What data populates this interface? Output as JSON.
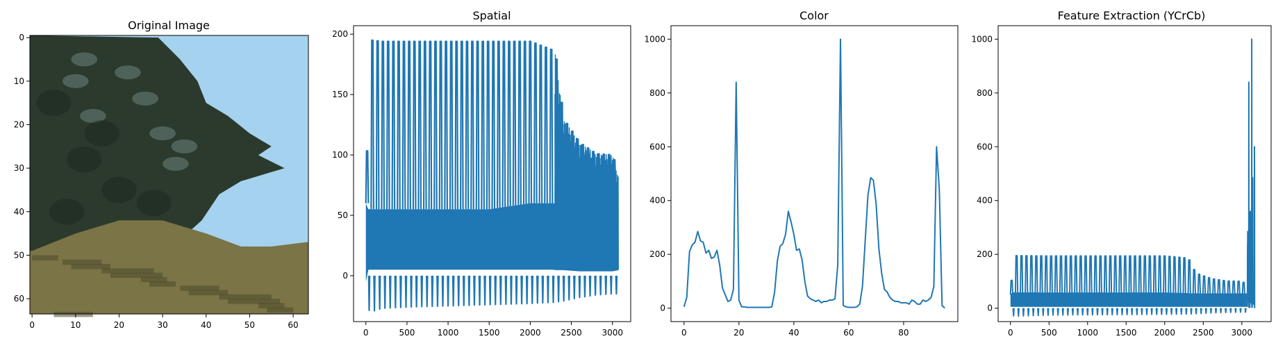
{
  "chart_data": [
    {
      "type": "image",
      "title": "Original Image",
      "xlim": [
        -0.5,
        63.5
      ],
      "ylim": [
        63.5,
        -0.5
      ],
      "xticks": [
        0,
        10,
        20,
        30,
        40,
        50,
        60
      ],
      "yticks": [
        0,
        10,
        20,
        30,
        40,
        50,
        60
      ],
      "scene": {
        "sky_color": "#a5d2ee",
        "tree_color": "#2b3a2c",
        "tree_highlight_color": "#7c9592",
        "grass_color": "#7a7446",
        "grass_dark_color": "#4c4a2b",
        "tree_edge_rows": [
          [
            0,
            29
          ],
          [
            5,
            34
          ],
          [
            10,
            38
          ],
          [
            15,
            40
          ],
          [
            18,
            45
          ],
          [
            22,
            50
          ],
          [
            25,
            55
          ],
          [
            27,
            52
          ],
          [
            30,
            58
          ],
          [
            33,
            48
          ],
          [
            36,
            43
          ],
          [
            39,
            41
          ],
          [
            42,
            39
          ]
        ],
        "grass_top_rows": [
          [
            0,
            49
          ],
          [
            10,
            45
          ],
          [
            20,
            42
          ],
          [
            30,
            42
          ],
          [
            40,
            45
          ],
          [
            48,
            48
          ],
          [
            55,
            48
          ],
          [
            63,
            47
          ]
        ]
      }
    },
    {
      "type": "line",
      "title": "Spatial",
      "xlim": [
        -150,
        3222
      ],
      "ylim": [
        -38,
        207
      ],
      "xticks": [
        0,
        500,
        1000,
        1500,
        2000,
        2500,
        3000
      ],
      "yticks": [
        0,
        50,
        100,
        150,
        200
      ],
      "series": [
        {
          "name": "",
          "color": "#1f77b4",
          "n_points": 3072,
          "envelope_x": [
            0,
            30,
            60,
            200,
            500,
            1000,
            1500,
            2000,
            2300,
            2400,
            2600,
            2800,
            3000,
            3071
          ],
          "envelope_top": [
            70,
            195,
            195,
            194,
            194,
            194,
            194,
            194,
            186,
            130,
            110,
            101,
            100,
            82
          ],
          "envelope_bottom": [
            -5,
            -28,
            -30,
            -27,
            -26,
            -25,
            -24,
            -23,
            -22,
            -21,
            -18,
            -16,
            -15,
            -15
          ],
          "band_low": [
            -5,
            5,
            5,
            5,
            5,
            5,
            5,
            5,
            5,
            5,
            4,
            4,
            4,
            5
          ],
          "band_high": [
            60,
            55,
            55,
            55,
            55,
            55,
            55,
            60,
            60,
            70,
            72,
            70,
            68,
            65
          ],
          "spike_period": 64
        }
      ]
    },
    {
      "type": "line",
      "title": "Color",
      "xlim": [
        -4.75,
        99.75
      ],
      "ylim": [
        -50,
        1050
      ],
      "xticks": [
        0,
        20,
        40,
        60,
        80
      ],
      "yticks": [
        0,
        200,
        400,
        600,
        800,
        1000
      ],
      "series": [
        {
          "name": "",
          "color": "#1f77b4",
          "x": [
            0,
            1,
            2,
            3,
            4,
            5,
            6,
            7,
            8,
            9,
            10,
            11,
            12,
            13,
            14,
            15,
            16,
            17,
            18,
            19,
            20,
            21,
            22,
            23,
            24,
            25,
            26,
            27,
            28,
            29,
            30,
            31,
            32,
            33,
            34,
            35,
            36,
            37,
            38,
            39,
            40,
            41,
            42,
            43,
            44,
            45,
            46,
            47,
            48,
            49,
            50,
            51,
            52,
            53,
            54,
            55,
            56,
            57,
            58,
            59,
            60,
            61,
            62,
            63,
            64,
            65,
            66,
            67,
            68,
            69,
            70,
            71,
            72,
            73,
            74,
            75,
            76,
            77,
            78,
            79,
            80,
            81,
            82,
            83,
            84,
            85,
            86,
            87,
            88,
            89,
            90,
            91,
            92,
            93,
            94,
            95
          ],
          "y": [
            5,
            40,
            210,
            235,
            245,
            285,
            250,
            245,
            205,
            215,
            185,
            190,
            215,
            160,
            75,
            50,
            25,
            30,
            70,
            840,
            30,
            5,
            5,
            3,
            3,
            3,
            3,
            3,
            3,
            3,
            3,
            3,
            5,
            60,
            175,
            230,
            240,
            275,
            360,
            320,
            275,
            215,
            220,
            180,
            100,
            45,
            35,
            30,
            25,
            30,
            20,
            25,
            25,
            30,
            30,
            35,
            160,
            1000,
            10,
            5,
            3,
            3,
            3,
            5,
            15,
            80,
            250,
            420,
            485,
            475,
            385,
            220,
            130,
            70,
            60,
            40,
            30,
            25,
            25,
            20,
            20,
            20,
            15,
            30,
            25,
            15,
            15,
            30,
            25,
            30,
            40,
            80,
            600,
            440,
            10,
            0
          ]
        }
      ]
    },
    {
      "type": "line",
      "title": "Feature Extraction (YCrCb)",
      "xlim": [
        -160,
        3380
      ],
      "ylim": [
        -50,
        1050
      ],
      "xticks": [
        0,
        500,
        1000,
        1500,
        2000,
        2500,
        3000
      ],
      "yticks": [
        0,
        200,
        400,
        600,
        800,
        1000
      ],
      "series": [
        {
          "name": "",
          "color": "#1f77b4",
          "n_points": 3168,
          "spatial_envelope_x": [
            0,
            30,
            60,
            500,
            1000,
            1500,
            2000,
            2300,
            2400,
            2600,
            2800,
            3000,
            3071
          ],
          "spatial_envelope_top": [
            70,
            195,
            195,
            194,
            194,
            194,
            194,
            186,
            130,
            110,
            101,
            100,
            82
          ],
          "spatial_envelope_bottom": [
            -5,
            -28,
            -30,
            -26,
            -25,
            -24,
            -23,
            -22,
            -21,
            -18,
            -16,
            -15,
            -15
          ],
          "hist_start": 3072,
          "hist_y": [
            5,
            40,
            210,
            235,
            245,
            285,
            250,
            245,
            205,
            215,
            185,
            190,
            215,
            160,
            75,
            50,
            25,
            30,
            70,
            840,
            30,
            5,
            5,
            3,
            3,
            3,
            3,
            3,
            3,
            3,
            3,
            3,
            5,
            60,
            175,
            230,
            240,
            275,
            360,
            320,
            275,
            215,
            220,
            180,
            100,
            45,
            35,
            30,
            25,
            30,
            20,
            25,
            25,
            30,
            30,
            35,
            160,
            1000,
            10,
            5,
            3,
            3,
            3,
            5,
            15,
            80,
            250,
            420,
            485,
            475,
            385,
            220,
            130,
            70,
            60,
            40,
            30,
            25,
            25,
            20,
            20,
            20,
            15,
            30,
            25,
            15,
            15,
            30,
            25,
            30,
            40,
            80,
            600,
            440,
            10,
            0
          ]
        }
      ]
    }
  ]
}
